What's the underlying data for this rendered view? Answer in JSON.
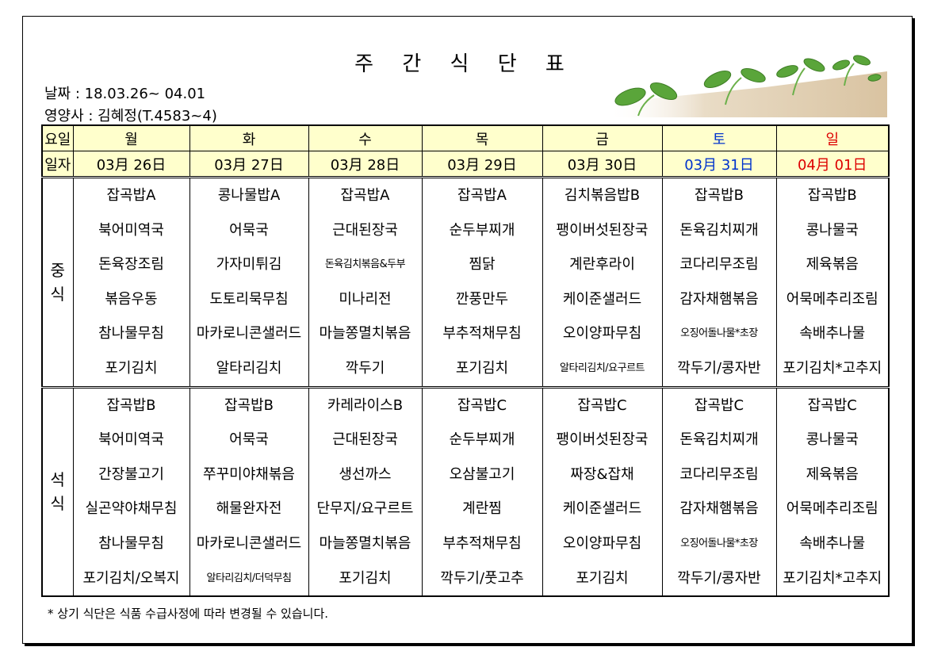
{
  "title": "주 간 식 단 표",
  "date_line": "날짜 : 18.03.26~ 04.01",
  "dietitian_line": "영양사 : 김혜정(T.4583~4)",
  "header": {
    "weekday_label": "요일",
    "date_label": "일자"
  },
  "days": [
    {
      "name": "월",
      "date": "03月 26日"
    },
    {
      "name": "화",
      "date": "03月 27日"
    },
    {
      "name": "수",
      "date": "03月 28日"
    },
    {
      "name": "목",
      "date": "03月 29日"
    },
    {
      "name": "금",
      "date": "03月 30日"
    },
    {
      "name": "토",
      "date": "03月 31日"
    },
    {
      "name": "일",
      "date": "04月 01日"
    }
  ],
  "colors": {
    "saturday": "#0033cc",
    "sunday": "#dd0000",
    "header_bg": "#ffffcc"
  },
  "lunch": {
    "label": "중\n식",
    "items": [
      [
        "잡곡밥A",
        "북어미역국",
        "돈육장조림",
        "볶음우동",
        "참나물무침",
        "포기김치"
      ],
      [
        "콩나물밥A",
        "어묵국",
        "가자미튀김",
        "도토리묵무침",
        "마카로니콘샐러드",
        "알타리김치"
      ],
      [
        "잡곡밥A",
        "근대된장국",
        "돈육김치볶음&두부",
        "미나리전",
        "마늘쫑멸치볶음",
        "깍두기"
      ],
      [
        "잡곡밥A",
        "순두부찌개",
        "찜닭",
        "깐풍만두",
        "부추적채무침",
        "포기김치"
      ],
      [
        "김치볶음밥B",
        "팽이버섯된장국",
        "계란후라이",
        "케이준샐러드",
        "오이양파무침",
        "알타리김치/요구르트"
      ],
      [
        "잡곡밥B",
        "돈육김치찌개",
        "코다리무조림",
        "감자채햄볶음",
        "오징어돌나물*초장",
        "깍두기/콩자반"
      ],
      [
        "잡곡밥B",
        "콩나물국",
        "제육볶음",
        "어묵메추리조림",
        "속배추나물",
        "포기김치*고추지"
      ]
    ]
  },
  "dinner": {
    "label": "석\n식",
    "items": [
      [
        "잡곡밥B",
        "북어미역국",
        "간장불고기",
        "실곤약야채무침",
        "참나물무침",
        "포기김치/오복지"
      ],
      [
        "잡곡밥B",
        "어묵국",
        "쭈꾸미야채볶음",
        "해물완자전",
        "마카로니콘샐러드",
        "알타리김치/더덕무침"
      ],
      [
        "카레라이스B",
        "근대된장국",
        "생선까스",
        "단무지/요구르트",
        "마늘쫑멸치볶음",
        "포기김치"
      ],
      [
        "잡곡밥C",
        "순두부찌개",
        "오삼불고기",
        "계란찜",
        "부추적채무침",
        "깍두기/풋고추"
      ],
      [
        "잡곡밥C",
        "팽이버섯된장국",
        "짜장&잡채",
        "케이준샐러드",
        "오이양파무침",
        "포기김치"
      ],
      [
        "잡곡밥C",
        "돈육김치찌개",
        "코다리무조림",
        "감자채햄볶음",
        "오징어돌나물*초장",
        "깍두기/콩자반"
      ],
      [
        "잡곡밥C",
        "콩나물국",
        "제육볶음",
        "어묵메추리조림",
        "속배추나물",
        "포기김치*고추지"
      ]
    ]
  },
  "note": "* 상기 식단은 식품 수급사정에 따라 변경될 수 있습니다."
}
